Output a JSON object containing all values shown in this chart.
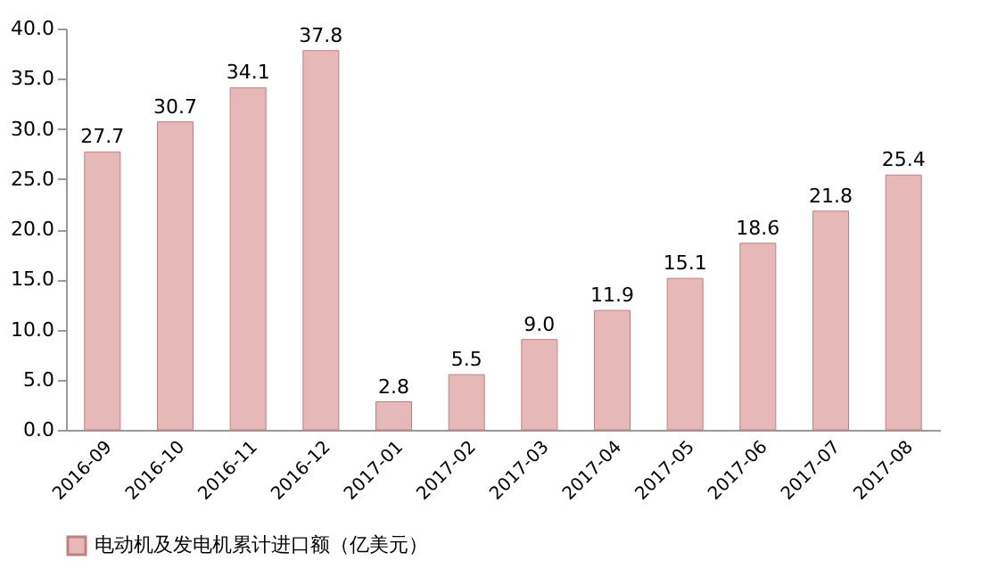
{
  "chart_data": {
    "type": "bar",
    "categories": [
      "2016-09",
      "2016-10",
      "2016-11",
      "2016-12",
      "2017-01",
      "2017-02",
      "2017-03",
      "2017-04",
      "2017-05",
      "2017-06",
      "2017-07",
      "2017-08"
    ],
    "series": [
      {
        "name": "电动机及发电机累计进口额（亿美元）",
        "color": "#e6b8b7",
        "values": [
          27.7,
          30.7,
          34.1,
          37.8,
          2.8,
          5.5,
          9.0,
          11.9,
          15.1,
          18.6,
          21.8,
          25.4
        ]
      }
    ],
    "ylim": [
      0,
      40
    ],
    "yticks": [
      {
        "value": 0,
        "label": "0.0"
      },
      {
        "value": 5,
        "label": "5.0"
      },
      {
        "value": 10,
        "label": "10.0"
      },
      {
        "value": 15,
        "label": "15.0"
      },
      {
        "value": 20,
        "label": "20.0"
      },
      {
        "value": 25,
        "label": "25.0"
      },
      {
        "value": 30,
        "label": "30.0"
      },
      {
        "value": 35,
        "label": "35.0"
      },
      {
        "value": 40,
        "label": "40.0"
      }
    ],
    "value_labels": [
      "27.7",
      "30.7",
      "34.1",
      "37.8",
      "2.8",
      "5.5",
      "9.0",
      "11.9",
      "15.1",
      "18.6",
      "21.8",
      "25.4"
    ],
    "grid": false,
    "legend": "bottom"
  }
}
